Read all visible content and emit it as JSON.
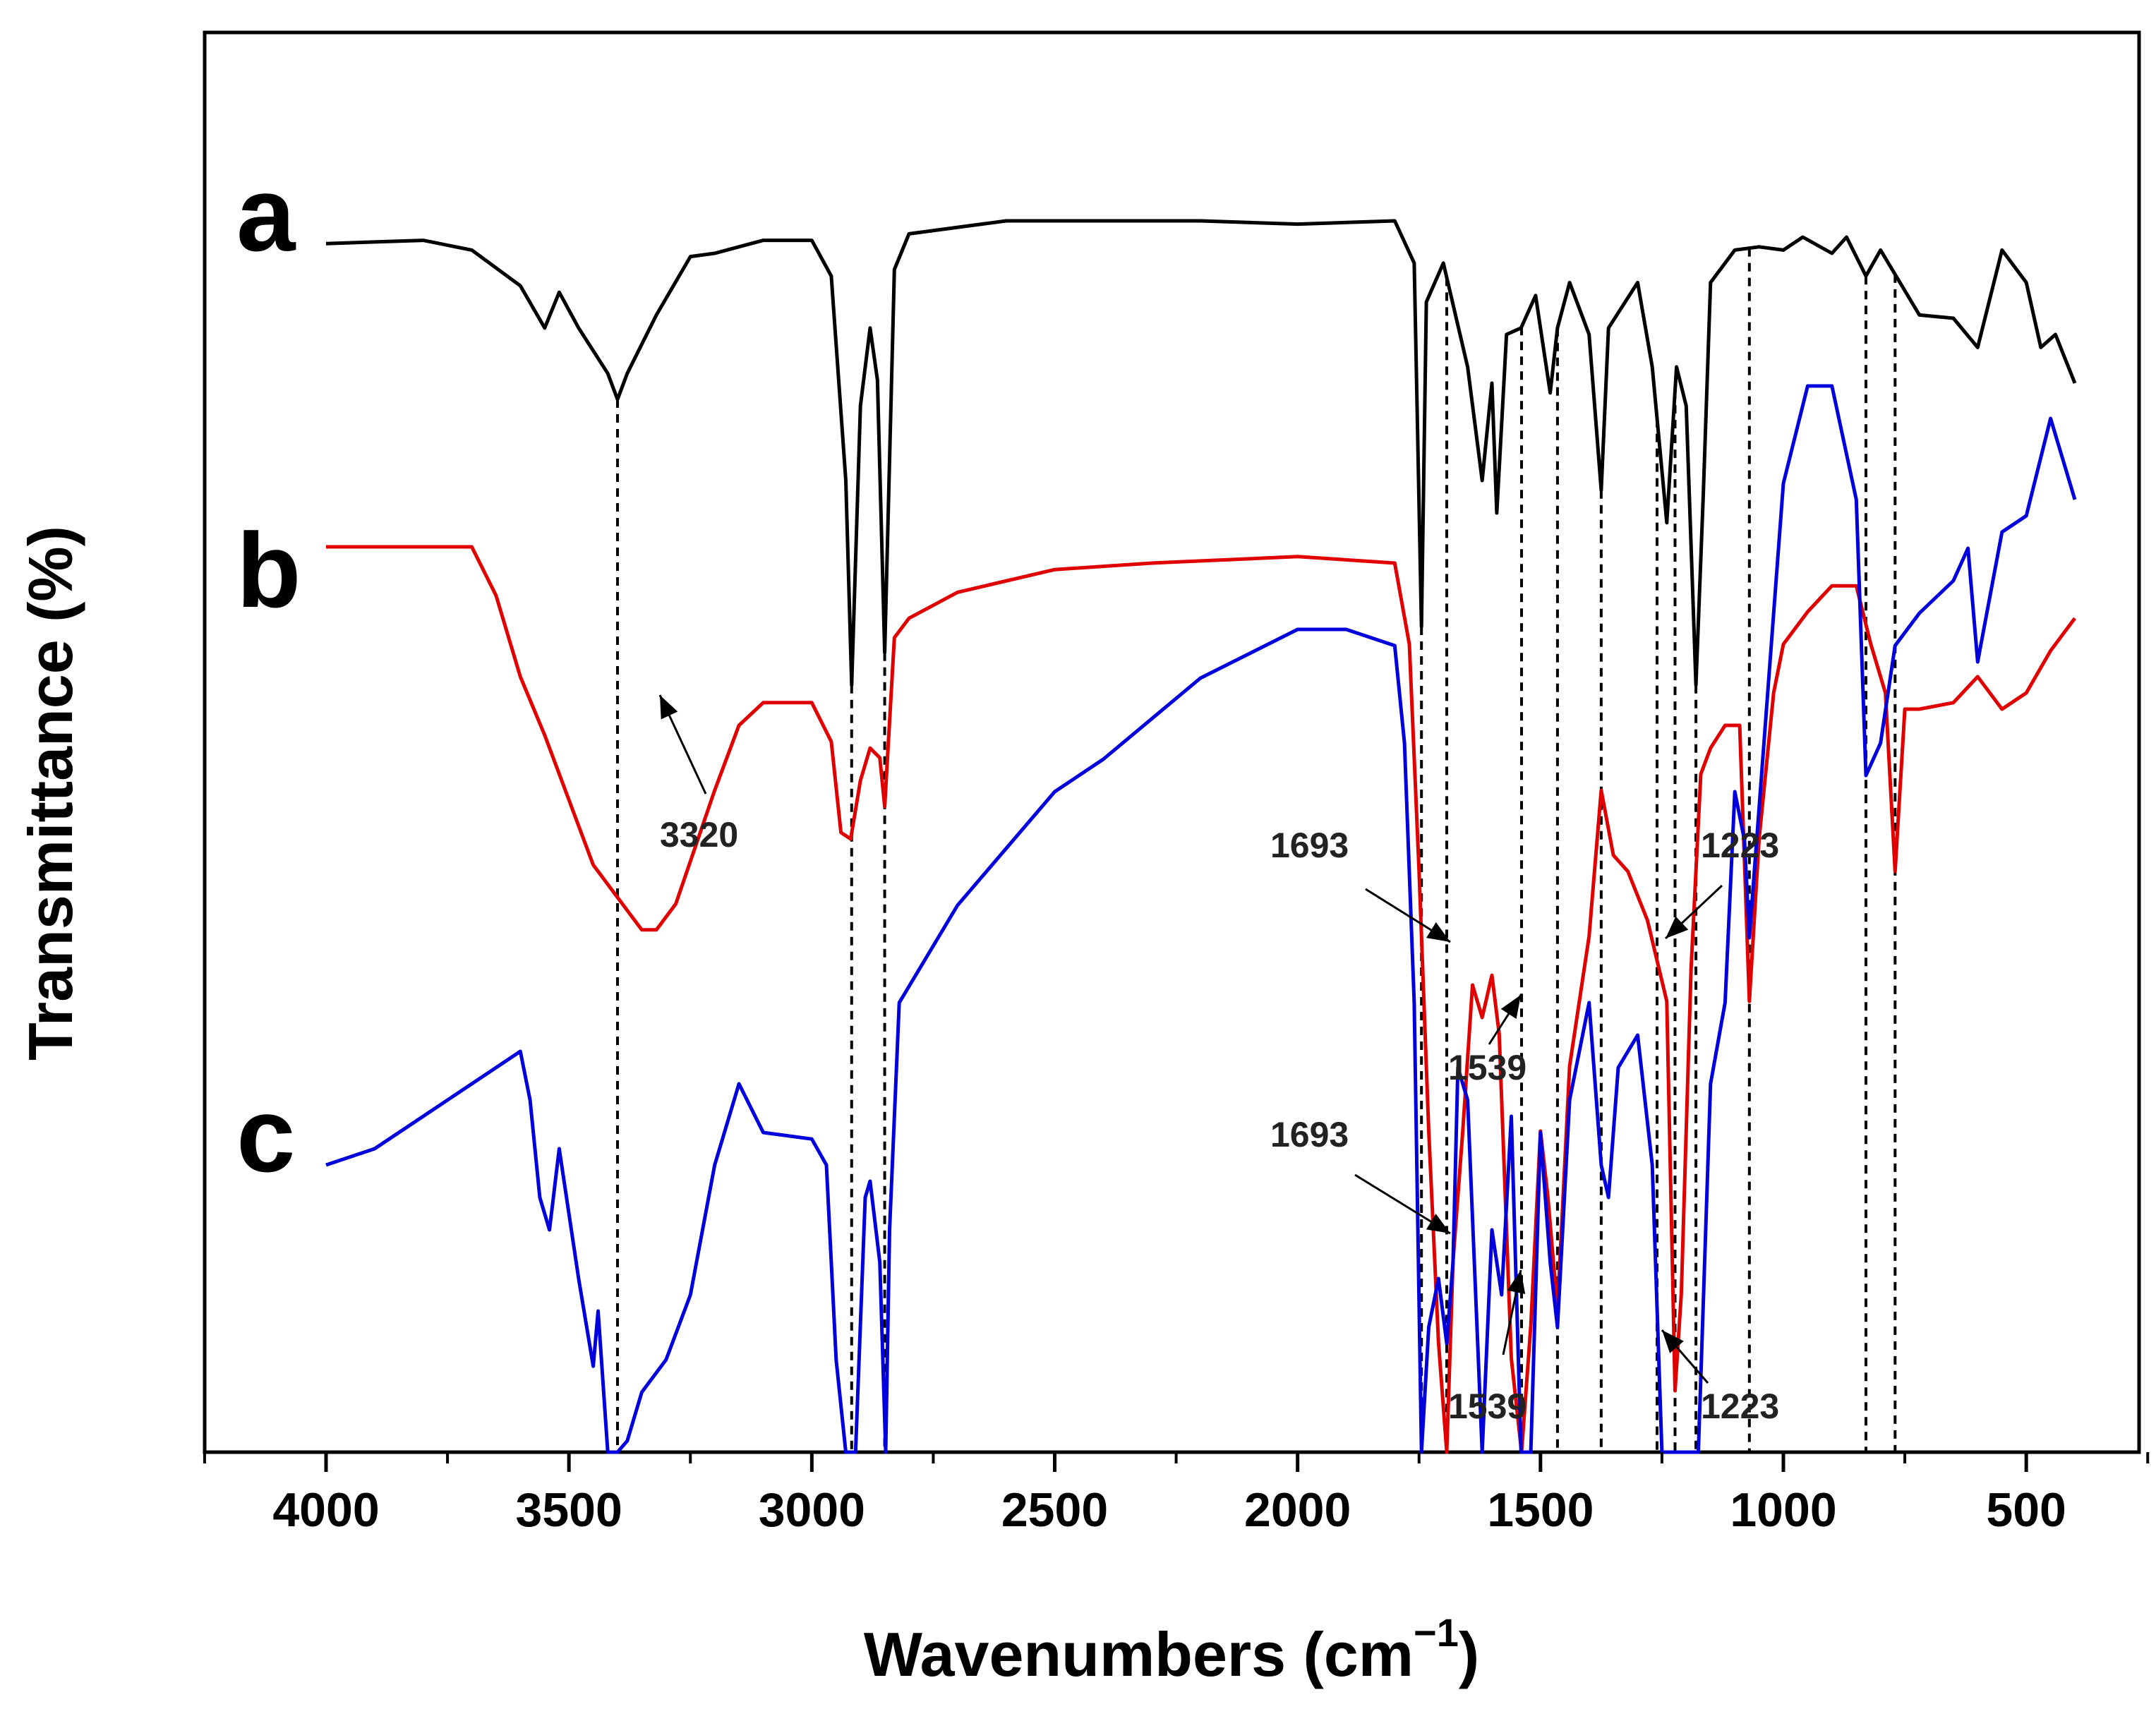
{
  "chart_data": {
    "type": "line",
    "title": "",
    "xlabel": "Wavenumbers (cm",
    "xlabel_sup": "−1",
    "xlabel_close": ")",
    "ylabel": "Transmittance (%)",
    "xlim": [
      4250,
      250
    ],
    "x_reversed": true,
    "xticks": [
      4000,
      3500,
      3000,
      2500,
      2000,
      1500,
      1000,
      500
    ],
    "y_tick_labels": false,
    "line_color_a": "#000000",
    "line_color_b": "#e00000",
    "line_color_c": "#0000dd",
    "series": [
      {
        "name": "a",
        "color": "#000000",
        "points": [
          [
            4000,
            12
          ],
          [
            3800,
            11
          ],
          [
            3700,
            14
          ],
          [
            3600,
            25
          ],
          [
            3550,
            38
          ],
          [
            3520,
            27
          ],
          [
            3480,
            38
          ],
          [
            3420,
            52
          ],
          [
            3400,
            60
          ],
          [
            3380,
            52
          ],
          [
            3320,
            34
          ],
          [
            3250,
            16
          ],
          [
            3200,
            15
          ],
          [
            3100,
            11
          ],
          [
            3000,
            11
          ],
          [
            2960,
            22
          ],
          [
            2930,
            85
          ],
          [
            2918,
            148
          ],
          [
            2900,
            62
          ],
          [
            2880,
            38
          ],
          [
            2865,
            54
          ],
          [
            2850,
            138
          ],
          [
            2830,
            20
          ],
          [
            2800,
            9
          ],
          [
            2600,
            5
          ],
          [
            2200,
            5
          ],
          [
            2000,
            6
          ],
          [
            1800,
            5
          ],
          [
            1760,
            18
          ],
          [
            1745,
            130
          ],
          [
            1735,
            30
          ],
          [
            1700,
            18
          ],
          [
            1650,
            50
          ],
          [
            1620,
            85
          ],
          [
            1600,
            55
          ],
          [
            1590,
            95
          ],
          [
            1570,
            40
          ],
          [
            1540,
            38
          ],
          [
            1510,
            28
          ],
          [
            1480,
            58
          ],
          [
            1465,
            38
          ],
          [
            1440,
            24
          ],
          [
            1400,
            40
          ],
          [
            1375,
            88
          ],
          [
            1360,
            38
          ],
          [
            1300,
            24
          ],
          [
            1270,
            50
          ],
          [
            1240,
            98
          ],
          [
            1220,
            50
          ],
          [
            1200,
            62
          ],
          [
            1180,
            148
          ],
          [
            1165,
            90
          ],
          [
            1150,
            24
          ],
          [
            1100,
            14
          ],
          [
            1050,
            13
          ],
          [
            1000,
            14
          ],
          [
            960,
            10
          ],
          [
            900,
            15
          ],
          [
            870,
            10
          ],
          [
            830,
            22
          ],
          [
            800,
            14
          ],
          [
            760,
            24
          ],
          [
            720,
            34
          ],
          [
            650,
            35
          ],
          [
            600,
            44
          ],
          [
            550,
            14
          ],
          [
            500,
            24
          ],
          [
            470,
            44
          ],
          [
            440,
            40
          ],
          [
            400,
            55
          ]
        ]
      },
      {
        "name": "b",
        "color": "#e00000",
        "points": [
          [
            4000,
            0
          ],
          [
            3700,
            0
          ],
          [
            3650,
            15
          ],
          [
            3600,
            40
          ],
          [
            3550,
            58
          ],
          [
            3500,
            78
          ],
          [
            3450,
            98
          ],
          [
            3400,
            108
          ],
          [
            3350,
            118
          ],
          [
            3320,
            118
          ],
          [
            3280,
            110
          ],
          [
            3200,
            75
          ],
          [
            3150,
            55
          ],
          [
            3100,
            48
          ],
          [
            3000,
            48
          ],
          [
            2960,
            60
          ],
          [
            2940,
            88
          ],
          [
            2920,
            90
          ],
          [
            2900,
            72
          ],
          [
            2880,
            62
          ],
          [
            2860,
            65
          ],
          [
            2850,
            80
          ],
          [
            2830,
            28
          ],
          [
            2800,
            22
          ],
          [
            2700,
            14
          ],
          [
            2500,
            7
          ],
          [
            2300,
            5
          ],
          [
            2000,
            3
          ],
          [
            1800,
            5
          ],
          [
            1770,
            30
          ],
          [
            1750,
            100
          ],
          [
            1730,
            180
          ],
          [
            1710,
            245
          ],
          [
            1693,
            290
          ],
          [
            1680,
            220
          ],
          [
            1660,
            180
          ],
          [
            1640,
            135
          ],
          [
            1620,
            145
          ],
          [
            1600,
            132
          ],
          [
            1585,
            150
          ],
          [
            1560,
            250
          ],
          [
            1539,
            325
          ],
          [
            1520,
            240
          ],
          [
            1500,
            180
          ],
          [
            1485,
            200
          ],
          [
            1465,
            235
          ],
          [
            1440,
            160
          ],
          [
            1400,
            120
          ],
          [
            1375,
            75
          ],
          [
            1350,
            95
          ],
          [
            1320,
            100
          ],
          [
            1280,
            115
          ],
          [
            1240,
            140
          ],
          [
            1223,
            260
          ],
          [
            1210,
            230
          ],
          [
            1190,
            130
          ],
          [
            1170,
            70
          ],
          [
            1150,
            62
          ],
          [
            1120,
            55
          ],
          [
            1090,
            55
          ],
          [
            1070,
            140
          ],
          [
            1050,
            90
          ],
          [
            1020,
            45
          ],
          [
            1000,
            30
          ],
          [
            950,
            20
          ],
          [
            900,
            12
          ],
          [
            850,
            12
          ],
          [
            820,
            30
          ],
          [
            790,
            45
          ],
          [
            770,
            100
          ],
          [
            750,
            50
          ],
          [
            720,
            50
          ],
          [
            650,
            48
          ],
          [
            600,
            40
          ],
          [
            550,
            50
          ],
          [
            500,
            45
          ],
          [
            450,
            32
          ],
          [
            400,
            22
          ]
        ]
      },
      {
        "name": "c",
        "color": "#0000dd",
        "points": [
          [
            4000,
            10
          ],
          [
            3900,
            5
          ],
          [
            3800,
            -5
          ],
          [
            3700,
            -15
          ],
          [
            3600,
            -25
          ],
          [
            3580,
            -10
          ],
          [
            3560,
            20
          ],
          [
            3540,
            30
          ],
          [
            3520,
            5
          ],
          [
            3480,
            45
          ],
          [
            3450,
            72
          ],
          [
            3440,
            55
          ],
          [
            3420,
            110
          ],
          [
            3400,
            125
          ],
          [
            3380,
            95
          ],
          [
            3350,
            80
          ],
          [
            3300,
            70
          ],
          [
            3250,
            50
          ],
          [
            3200,
            10
          ],
          [
            3150,
            -15
          ],
          [
            3100,
            0
          ],
          [
            3000,
            2
          ],
          [
            2970,
            10
          ],
          [
            2950,
            70
          ],
          [
            2930,
            150
          ],
          [
            2920,
            210
          ],
          [
            2910,
            140
          ],
          [
            2890,
            20
          ],
          [
            2880,
            15
          ],
          [
            2860,
            40
          ],
          [
            2848,
            125
          ],
          [
            2840,
            30
          ],
          [
            2820,
            -40
          ],
          [
            2700,
            -70
          ],
          [
            2500,
            -105
          ],
          [
            2400,
            -115
          ],
          [
            2200,
            -140
          ],
          [
            2000,
            -155
          ],
          [
            1900,
            -155
          ],
          [
            1800,
            -150
          ],
          [
            1780,
            -120
          ],
          [
            1760,
            -40
          ],
          [
            1745,
            100
          ],
          [
            1730,
            60
          ],
          [
            1710,
            45
          ],
          [
            1693,
            65
          ],
          [
            1680,
            40
          ],
          [
            1670,
            -20
          ],
          [
            1650,
            -10
          ],
          [
            1620,
            100
          ],
          [
            1600,
            30
          ],
          [
            1580,
            50
          ],
          [
            1560,
            -5
          ],
          [
            1540,
            120
          ],
          [
            1520,
            140
          ],
          [
            1500,
            0
          ],
          [
            1480,
            40
          ],
          [
            1465,
            60
          ],
          [
            1440,
            -10
          ],
          [
            1400,
            -40
          ],
          [
            1375,
            10
          ],
          [
            1360,
            20
          ],
          [
            1340,
            -20
          ],
          [
            1300,
            -30
          ],
          [
            1270,
            10
          ],
          [
            1250,
            120
          ],
          [
            1223,
            140
          ],
          [
            1210,
            120
          ],
          [
            1190,
            150
          ],
          [
            1175,
            180
          ],
          [
            1150,
            -15
          ],
          [
            1120,
            -40
          ],
          [
            1100,
            -105
          ],
          [
            1080,
            -90
          ],
          [
            1070,
            -60
          ],
          [
            1050,
            -100
          ],
          [
            1000,
            -200
          ],
          [
            950,
            -230
          ],
          [
            900,
            -230
          ],
          [
            850,
            -195
          ],
          [
            830,
            -110
          ],
          [
            800,
            -120
          ],
          [
            770,
            -150
          ],
          [
            720,
            -160
          ],
          [
            650,
            -170
          ],
          [
            620,
            -180
          ],
          [
            600,
            -145
          ],
          [
            550,
            -185
          ],
          [
            500,
            -190
          ],
          [
            450,
            -220
          ],
          [
            400,
            -195
          ]
        ]
      }
    ],
    "series_letters": [
      "a",
      "b",
      "c"
    ],
    "annotations": [
      {
        "label": "3320",
        "series": "b"
      },
      {
        "label": "1693",
        "series": "b"
      },
      {
        "label": "1539",
        "series": "b"
      },
      {
        "label": "1223",
        "series": "b"
      },
      {
        "label": "1693",
        "series": "c"
      },
      {
        "label": "1539",
        "series": "c"
      },
      {
        "label": "1223",
        "series": "c"
      }
    ],
    "reference_lines": [
      3400,
      2918,
      2850,
      1745,
      1693,
      1539,
      1465,
      1375,
      1260,
      1223,
      1180,
      1070,
      830,
      770
    ]
  }
}
